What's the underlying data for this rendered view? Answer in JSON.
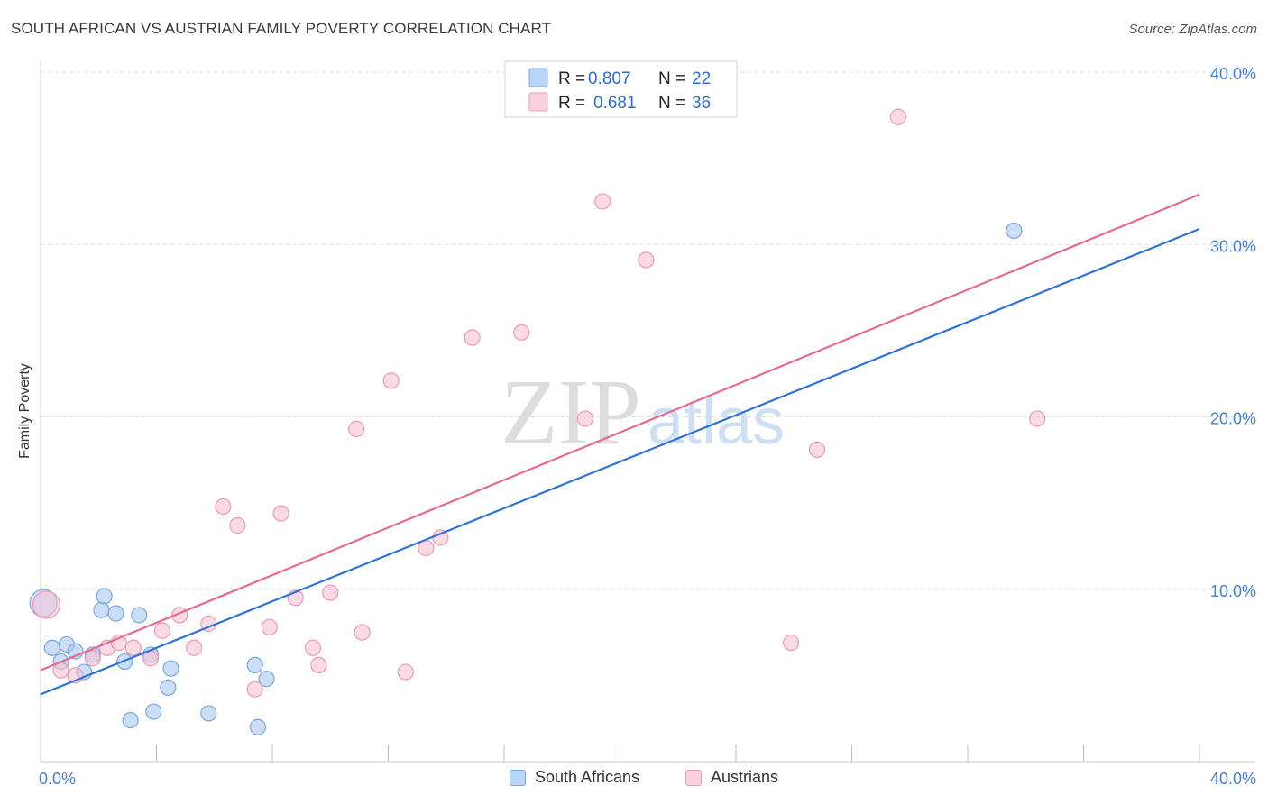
{
  "chart_data": {
    "type": "scatter",
    "title": "SOUTH AFRICAN VS AUSTRIAN FAMILY POVERTY CORRELATION CHART",
    "source": "Source: ZipAtlas.com",
    "ylabel": "Family Poverty",
    "xlabel": "",
    "xlim": [
      0,
      40
    ],
    "ylim": [
      0,
      40
    ],
    "x_tick_labels": [
      "0.0%",
      "40.0%"
    ],
    "y_ticks": [
      10,
      20,
      30,
      40
    ],
    "y_tick_labels": [
      "10.0%",
      "20.0%",
      "30.0%",
      "40.0%"
    ],
    "watermark": {
      "zip": "ZIP",
      "atlas": "atlas"
    },
    "legend": {
      "r_label": "R =",
      "n_label": "N =",
      "entries": [
        {
          "r": "0.807",
          "n": "22"
        },
        {
          "r": "0.681",
          "n": "36"
        }
      ]
    },
    "series": [
      {
        "name": "South Africans",
        "color": "#a9c8f0",
        "stroke": "#7aa6df",
        "line_color": "#2f74d0",
        "trend": {
          "x": [
            0,
            40
          ],
          "y": [
            3.9,
            30.9
          ]
        },
        "points": [
          {
            "x": 0.1,
            "y": 9.2,
            "big": true
          },
          {
            "x": 0.4,
            "y": 6.6
          },
          {
            "x": 0.7,
            "y": 5.8
          },
          {
            "x": 0.9,
            "y": 6.8
          },
          {
            "x": 1.2,
            "y": 6.4
          },
          {
            "x": 1.5,
            "y": 5.2
          },
          {
            "x": 1.8,
            "y": 6.2
          },
          {
            "x": 2.1,
            "y": 8.8
          },
          {
            "x": 2.2,
            "y": 9.6
          },
          {
            "x": 2.6,
            "y": 8.6
          },
          {
            "x": 2.9,
            "y": 5.8
          },
          {
            "x": 3.1,
            "y": 2.4
          },
          {
            "x": 3.4,
            "y": 8.5
          },
          {
            "x": 3.8,
            "y": 6.2
          },
          {
            "x": 3.9,
            "y": 2.9
          },
          {
            "x": 4.4,
            "y": 4.3
          },
          {
            "x": 4.5,
            "y": 5.4
          },
          {
            "x": 5.8,
            "y": 2.8
          },
          {
            "x": 7.4,
            "y": 5.6
          },
          {
            "x": 7.5,
            "y": 2.0
          },
          {
            "x": 7.8,
            "y": 4.8
          },
          {
            "x": 33.6,
            "y": 30.8
          }
        ]
      },
      {
        "name": "Austrians",
        "color": "#f7c3d3",
        "stroke": "#eb9ab5",
        "line_color": "#e36b95",
        "trend": {
          "x": [
            0,
            40
          ],
          "y": [
            5.3,
            32.9
          ]
        },
        "points": [
          {
            "x": 0.2,
            "y": 9.1,
            "big": true
          },
          {
            "x": 0.7,
            "y": 5.3
          },
          {
            "x": 1.2,
            "y": 5.0
          },
          {
            "x": 1.8,
            "y": 6.0
          },
          {
            "x": 2.3,
            "y": 6.6
          },
          {
            "x": 2.7,
            "y": 6.9
          },
          {
            "x": 3.2,
            "y": 6.6
          },
          {
            "x": 3.8,
            "y": 6.0
          },
          {
            "x": 4.2,
            "y": 7.6
          },
          {
            "x": 4.8,
            "y": 8.5
          },
          {
            "x": 5.3,
            "y": 6.6
          },
          {
            "x": 5.8,
            "y": 8.0
          },
          {
            "x": 6.3,
            "y": 14.8
          },
          {
            "x": 6.8,
            "y": 13.7
          },
          {
            "x": 7.4,
            "y": 4.2
          },
          {
            "x": 7.9,
            "y": 7.8
          },
          {
            "x": 8.3,
            "y": 14.4
          },
          {
            "x": 8.8,
            "y": 9.5
          },
          {
            "x": 9.4,
            "y": 6.6
          },
          {
            "x": 9.6,
            "y": 5.6
          },
          {
            "x": 10.0,
            "y": 9.8
          },
          {
            "x": 10.9,
            "y": 19.3
          },
          {
            "x": 11.1,
            "y": 7.5
          },
          {
            "x": 12.1,
            "y": 22.1
          },
          {
            "x": 12.6,
            "y": 5.2
          },
          {
            "x": 13.3,
            "y": 12.4
          },
          {
            "x": 13.8,
            "y": 13.0
          },
          {
            "x": 14.9,
            "y": 24.6
          },
          {
            "x": 16.6,
            "y": 24.9
          },
          {
            "x": 18.8,
            "y": 19.9
          },
          {
            "x": 19.4,
            "y": 32.5
          },
          {
            "x": 20.9,
            "y": 29.1
          },
          {
            "x": 25.9,
            "y": 6.9
          },
          {
            "x": 26.8,
            "y": 18.1
          },
          {
            "x": 29.6,
            "y": 37.4
          },
          {
            "x": 34.4,
            "y": 19.9
          }
        ]
      }
    ]
  },
  "colors": {
    "blue_swatch": "#b9d5f7",
    "pink_swatch": "#fad0de",
    "value_text": "#2f6cc6",
    "label_text": "#222222"
  }
}
